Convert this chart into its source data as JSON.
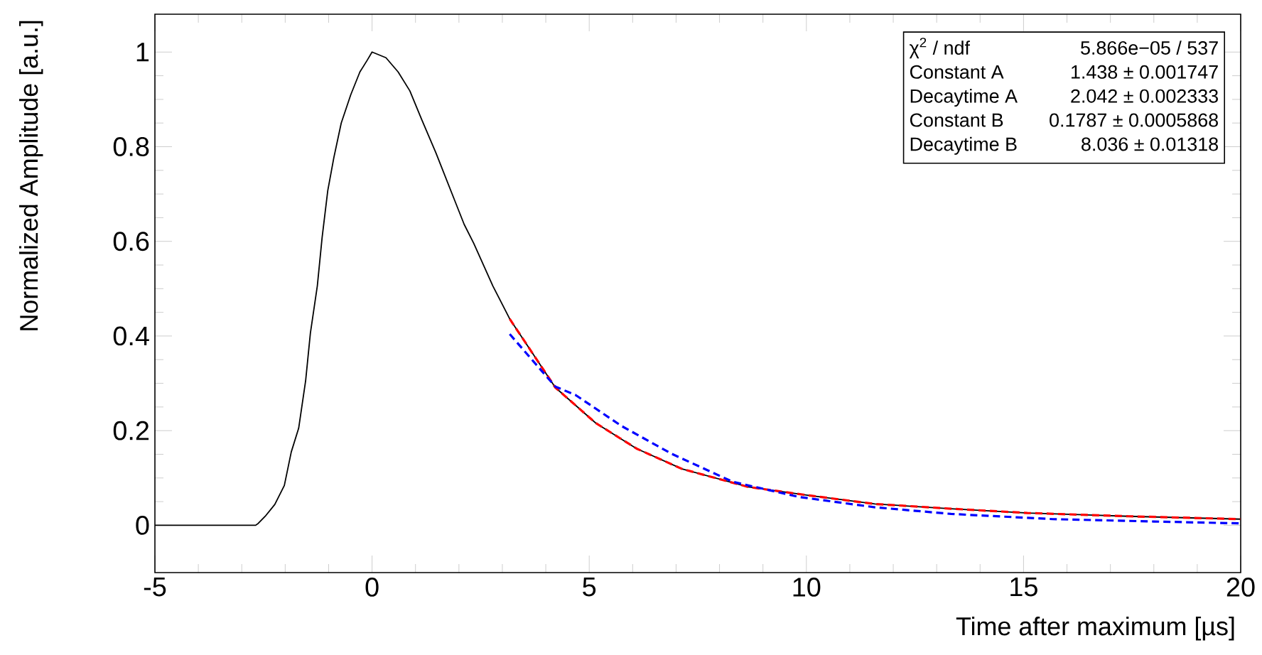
{
  "chart_data": {
    "type": "line",
    "xlabel": "Time after maximum [µs]",
    "ylabel": "Normalized Amplitude [a.u.]",
    "xlim": [
      -5,
      20
    ],
    "ylim": [
      -0.1,
      1.08
    ],
    "xticks": [
      -5,
      0,
      5,
      10,
      15,
      20
    ],
    "yticks": [
      0,
      0.2,
      0.4,
      0.6,
      0.8,
      1
    ],
    "grid": false,
    "marker": "none",
    "series": [
      {
        "color": "#000000",
        "line_style": "solid",
        "x": [
          -5,
          -2.68,
          -2.62,
          -2.46,
          -2.24,
          -2.02,
          -1.86,
          -1.69,
          -1.53,
          -1.42,
          -1.26,
          -1.15,
          -1.02,
          -0.88,
          -0.71,
          -0.49,
          -0.28,
          -0.11,
          0,
          0.32,
          0.6,
          0.87,
          1.14,
          1.47,
          1.9,
          2.12,
          2.34,
          2.78,
          3.17,
          4.22,
          5.15,
          6.09,
          7.14,
          8.66,
          10.06,
          11.58,
          13.33,
          15.09,
          17.42,
          19.99
        ],
        "values": [
          0,
          0,
          0.004,
          0.019,
          0.044,
          0.084,
          0.155,
          0.205,
          0.305,
          0.406,
          0.506,
          0.608,
          0.707,
          0.777,
          0.85,
          0.91,
          0.958,
          0.983,
          1,
          0.988,
          0.958,
          0.918,
          0.858,
          0.787,
          0.687,
          0.636,
          0.596,
          0.506,
          0.436,
          0.291,
          0.216,
          0.162,
          0.119,
          0.081,
          0.063,
          0.045,
          0.035,
          0.026,
          0.019,
          0.013
        ]
      },
      {
        "color": "#ff0000",
        "line_style": "dashed",
        "x": [
          3.17,
          4.22,
          5.15,
          6.09,
          7.14,
          8.66,
          10.06,
          11.58,
          13.33,
          15.09,
          17.42,
          19.99
        ],
        "values": [
          0.436,
          0.291,
          0.216,
          0.162,
          0.119,
          0.081,
          0.063,
          0.045,
          0.035,
          0.026,
          0.019,
          0.013
        ]
      },
      {
        "color": "#0000ff",
        "line_style": "dashed",
        "x": [
          3.17,
          4.22,
          4.69,
          5.74,
          6.9,
          8.3,
          9.82,
          11.58,
          13.33,
          15.67,
          18.0,
          19.99
        ],
        "values": [
          0.404,
          0.293,
          0.275,
          0.21,
          0.151,
          0.092,
          0.06,
          0.038,
          0.024,
          0.013,
          0.008,
          0.004
        ]
      }
    ],
    "annotations": [
      "χ$^{2}$ / ndf",
      "5.866e−05 / 537",
      "Constant A",
      "1.438 ± 0.001747",
      "Decaytime A",
      "2.042 ± 0.002333",
      "Constant B",
      "0.1787 ± 0.0005868",
      "Decaytime B",
      "8.036 ± 0.01318"
    ]
  }
}
